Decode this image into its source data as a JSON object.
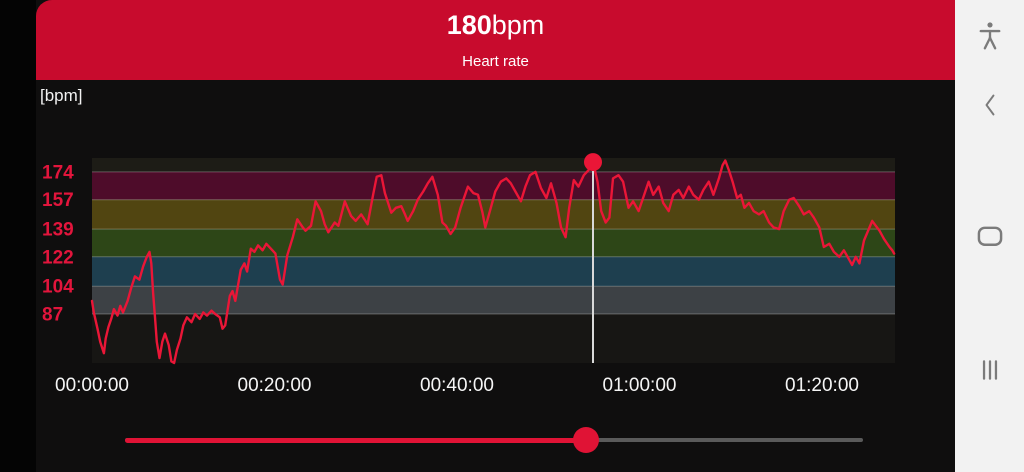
{
  "header": {
    "value": "180",
    "unit": "bpm",
    "label": "Heart rate",
    "bg_color": "#c80b2d"
  },
  "chart_data": {
    "type": "line",
    "title": "Heart rate",
    "unit_label": "[bpm]",
    "x_tick_labels": [
      "00:00:00",
      "00:20:00",
      "00:40:00",
      "01:00:00",
      "01:20:00"
    ],
    "x_tick_minutes": [
      0,
      20,
      40,
      60,
      80
    ],
    "x_range_minutes": [
      0,
      88
    ],
    "y_tick_values": [
      174,
      157,
      139,
      122,
      104,
      87
    ],
    "y_range": [
      57,
      182.5
    ],
    "grid": true,
    "legend": "none",
    "line_color": "#ea1637",
    "axis_label_color": "#e2153c",
    "x_label_color": "#f5f5f5",
    "grid_color": "rgba(255,255,255,0.28)",
    "cursor_line_color": "#d9d9d9",
    "zones": [
      {
        "from": 174,
        "to": 182.5,
        "color": "#1d1c16"
      },
      {
        "from": 157,
        "to": 174,
        "color": "#4e0c2a"
      },
      {
        "from": 139,
        "to": 157,
        "color": "#514511"
      },
      {
        "from": 122,
        "to": 139,
        "color": "#2d4617"
      },
      {
        "from": 104,
        "to": 122,
        "color": "#1e3f4f"
      },
      {
        "from": 87,
        "to": 104,
        "color": "#3d4145"
      },
      {
        "from": 57,
        "to": 87,
        "color": "#171614"
      }
    ],
    "cursor": {
      "time_min": 54.9,
      "value": 180
    },
    "series": [
      {
        "name": "Heart rate (bpm)",
        "points": [
          [
            0,
            95
          ],
          [
            0.2,
            88
          ],
          [
            0.6,
            78
          ],
          [
            0.9,
            70
          ],
          [
            1.3,
            63
          ],
          [
            1.5,
            72
          ],
          [
            1.8,
            79
          ],
          [
            2.1,
            84
          ],
          [
            2.4,
            90
          ],
          [
            2.8,
            86
          ],
          [
            3.1,
            92
          ],
          [
            3.4,
            88
          ],
          [
            3.9,
            95
          ],
          [
            4.3,
            103
          ],
          [
            4.7,
            110
          ],
          [
            5.2,
            108
          ],
          [
            5.6,
            116
          ],
          [
            6,
            122
          ],
          [
            6.3,
            125
          ],
          [
            6.5,
            118
          ],
          [
            6.7,
            100
          ],
          [
            6.9,
            85
          ],
          [
            7.1,
            70
          ],
          [
            7.4,
            60
          ],
          [
            7.7,
            70
          ],
          [
            8,
            75
          ],
          [
            8.4,
            68
          ],
          [
            8.7,
            58
          ],
          [
            9,
            57
          ],
          [
            9.3,
            65
          ],
          [
            9.7,
            72
          ],
          [
            10,
            80
          ],
          [
            10.4,
            85
          ],
          [
            10.9,
            82
          ],
          [
            11.3,
            87
          ],
          [
            11.8,
            84
          ],
          [
            12.2,
            88
          ],
          [
            12.6,
            86
          ],
          [
            13.1,
            89
          ],
          [
            13.5,
            87
          ],
          [
            14,
            85
          ],
          [
            14.3,
            78
          ],
          [
            14.6,
            80
          ],
          [
            15.1,
            98
          ],
          [
            15.4,
            101
          ],
          [
            15.7,
            95
          ],
          [
            16.3,
            114
          ],
          [
            16.7,
            118
          ],
          [
            17,
            113
          ],
          [
            17.4,
            127
          ],
          [
            17.8,
            125
          ],
          [
            18.2,
            129
          ],
          [
            18.7,
            126
          ],
          [
            19.1,
            130
          ],
          [
            19.6,
            127
          ],
          [
            20.1,
            124
          ],
          [
            20.6,
            108
          ],
          [
            20.9,
            105
          ],
          [
            21.4,
            123
          ],
          [
            22,
            134
          ],
          [
            22.5,
            145
          ],
          [
            23.1,
            140
          ],
          [
            23.4,
            138
          ],
          [
            24,
            141
          ],
          [
            24.5,
            156
          ],
          [
            25.1,
            150
          ],
          [
            25.5,
            142
          ],
          [
            25.9,
            137
          ],
          [
            26.6,
            143
          ],
          [
            27,
            141
          ],
          [
            27.7,
            156
          ],
          [
            28.4,
            147
          ],
          [
            28.9,
            144
          ],
          [
            29.5,
            148
          ],
          [
            30.2,
            142
          ],
          [
            30.8,
            160
          ],
          [
            31.2,
            171
          ],
          [
            31.7,
            172
          ],
          [
            32.1,
            161
          ],
          [
            32.8,
            149
          ],
          [
            33.3,
            152
          ],
          [
            33.9,
            153
          ],
          [
            34.3,
            148
          ],
          [
            34.6,
            144
          ],
          [
            35.2,
            150
          ],
          [
            35.7,
            157
          ],
          [
            36.3,
            162
          ],
          [
            36.8,
            167
          ],
          [
            37.3,
            171
          ],
          [
            37.9,
            160
          ],
          [
            38.4,
            143
          ],
          [
            38.8,
            141
          ],
          [
            39.3,
            136
          ],
          [
            39.8,
            140
          ],
          [
            40.4,
            152
          ],
          [
            41.2,
            165
          ],
          [
            41.8,
            161
          ],
          [
            42.3,
            160
          ],
          [
            42.8,
            149
          ],
          [
            43.1,
            140
          ],
          [
            43.6,
            150
          ],
          [
            44.2,
            162
          ],
          [
            44.8,
            168
          ],
          [
            45.4,
            170
          ],
          [
            45.9,
            167
          ],
          [
            46.4,
            162
          ],
          [
            47,
            156
          ],
          [
            47.5,
            165
          ],
          [
            48,
            172
          ],
          [
            48.6,
            174
          ],
          [
            49.2,
            164
          ],
          [
            49.8,
            158
          ],
          [
            50.3,
            167
          ],
          [
            50.9,
            155
          ],
          [
            51.4,
            140
          ],
          [
            51.9,
            134
          ],
          [
            52.3,
            152
          ],
          [
            52.8,
            169
          ],
          [
            53.3,
            165
          ],
          [
            53.9,
            172
          ],
          [
            54.4,
            175
          ],
          [
            54.9,
            180
          ],
          [
            55.4,
            168
          ],
          [
            55.8,
            150
          ],
          [
            56.3,
            143
          ],
          [
            56.7,
            146
          ],
          [
            57.1,
            170
          ],
          [
            57.7,
            172
          ],
          [
            58.2,
            168
          ],
          [
            58.8,
            152
          ],
          [
            59.3,
            156
          ],
          [
            59.9,
            150
          ],
          [
            60.4,
            158
          ],
          [
            61,
            168
          ],
          [
            61.5,
            160
          ],
          [
            62.1,
            165
          ],
          [
            62.6,
            155
          ],
          [
            63.2,
            150
          ],
          [
            63.7,
            160
          ],
          [
            64.3,
            163
          ],
          [
            64.8,
            158
          ],
          [
            65.4,
            165
          ],
          [
            65.9,
            160
          ],
          [
            66.5,
            157
          ],
          [
            67,
            163
          ],
          [
            67.6,
            168
          ],
          [
            68.1,
            160
          ],
          [
            68.7,
            170
          ],
          [
            69.1,
            178
          ],
          [
            69.4,
            181
          ],
          [
            69.8,
            175
          ],
          [
            70.2,
            168
          ],
          [
            70.7,
            158
          ],
          [
            71.1,
            160
          ],
          [
            71.5,
            152
          ],
          [
            72,
            155
          ],
          [
            72.5,
            150
          ],
          [
            73.1,
            148
          ],
          [
            73.6,
            150
          ],
          [
            74.2,
            143
          ],
          [
            74.7,
            140
          ],
          [
            75.3,
            139
          ],
          [
            75.8,
            150
          ],
          [
            76.4,
            157
          ],
          [
            76.9,
            158
          ],
          [
            77.5,
            153
          ],
          [
            78,
            148
          ],
          [
            78.6,
            150
          ],
          [
            79.1,
            146
          ],
          [
            79.7,
            140
          ],
          [
            80.2,
            128
          ],
          [
            80.8,
            130
          ],
          [
            81.3,
            125
          ],
          [
            81.9,
            122
          ],
          [
            82.4,
            126
          ],
          [
            83,
            120
          ],
          [
            83.3,
            117
          ],
          [
            83.7,
            122
          ],
          [
            84.1,
            118
          ],
          [
            84.6,
            132
          ],
          [
            85.2,
            140
          ],
          [
            85.5,
            144
          ],
          [
            85.9,
            141
          ],
          [
            86.3,
            138
          ],
          [
            86.8,
            133
          ],
          [
            87.4,
            128
          ],
          [
            87.7,
            126
          ],
          [
            87.9,
            124
          ]
        ]
      }
    ]
  },
  "slider": {
    "progress": 0.625,
    "track_color": "#5a5a5a",
    "fill_color": "#e01335",
    "handle_color": "#e01335"
  },
  "navbar": {
    "items": [
      {
        "name": "accessibility"
      },
      {
        "name": "back"
      },
      {
        "name": "home"
      },
      {
        "name": "recents"
      }
    ]
  }
}
